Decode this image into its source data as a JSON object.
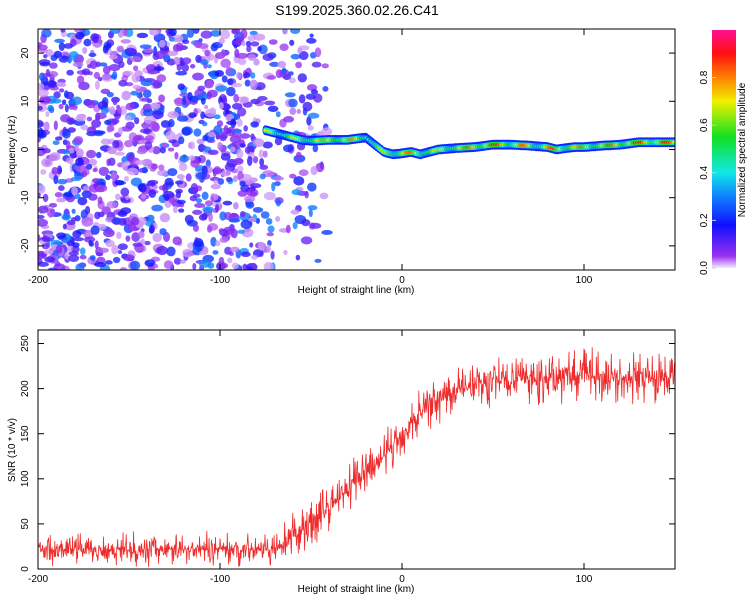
{
  "chart_data": [
    {
      "type": "heatmap",
      "title": "S199.2025.360.02.26.C41",
      "xlabel": "Height of straight line (km)",
      "ylabel": "Frequency (Hz)",
      "xlim": [
        -200,
        150
      ],
      "ylim": [
        -25,
        25
      ],
      "xticks": [
        "-200",
        "-100",
        "0",
        "100"
      ],
      "yticks": [
        "-20",
        "-10",
        "0",
        "10",
        "20"
      ],
      "colorbar": {
        "label": "Normalized spectral amplitude",
        "ticks": [
          "0.0",
          "0.2",
          "0.4",
          "0.6",
          "0.8"
        ],
        "range": [
          0,
          1
        ]
      },
      "noise_region_x": [
        -200,
        -60
      ],
      "ridge": {
        "x": [
          -75,
          -70,
          -65,
          -60,
          -55,
          -50,
          -40,
          -30,
          -20,
          -15,
          -10,
          -5,
          0,
          5,
          10,
          15,
          20,
          30,
          40,
          50,
          60,
          70,
          80,
          85,
          90,
          95,
          100,
          110,
          120,
          130,
          140,
          150
        ],
        "freq": [
          4,
          3.5,
          3,
          2.5,
          2,
          1.8,
          2,
          2,
          2.5,
          1,
          -0.5,
          -1,
          -0.8,
          -0.5,
          -1,
          -0.5,
          0,
          0.3,
          0.5,
          1,
          1,
          0.8,
          0.5,
          0,
          0.3,
          0.5,
          0.5,
          0.8,
          1,
          1.5,
          1.5,
          1.5
        ],
        "amplitude": [
          0.7,
          0.8,
          0.6,
          0.7,
          0.75,
          0.8,
          0.8,
          0.85,
          0.7,
          0.6,
          0.7,
          0.9,
          0.8,
          0.85,
          0.9,
          0.7,
          0.75,
          0.8,
          0.9,
          0.95,
          0.9,
          0.8,
          0.85,
          0.9,
          0.9,
          0.8,
          0.85,
          0.85,
          0.9,
          0.95,
          0.95,
          0.9
        ]
      }
    },
    {
      "type": "line",
      "xlabel": "Height of straight line (km)",
      "ylabel": "SNR (10 * v/v)",
      "xlim": [
        -200,
        150
      ],
      "ylim": [
        0,
        265
      ],
      "xticks": [
        "-200",
        "-100",
        "0",
        "100"
      ],
      "yticks": [
        "0",
        "50",
        "100",
        "150",
        "200",
        "250"
      ],
      "color": "#ee2c2c",
      "series": [
        {
          "name": "SNR",
          "x": [
            -200,
            -150,
            -100,
            -65,
            -60,
            -50,
            -40,
            -30,
            -20,
            -10,
            0,
            10,
            20,
            30,
            40,
            60,
            80,
            100,
            120,
            150
          ],
          "values": [
            22,
            22,
            22,
            22,
            35,
            50,
            70,
            90,
            105,
            125,
            150,
            175,
            190,
            200,
            205,
            210,
            212,
            215,
            212,
            212
          ],
          "noise_amplitude": 15
        }
      ]
    }
  ]
}
